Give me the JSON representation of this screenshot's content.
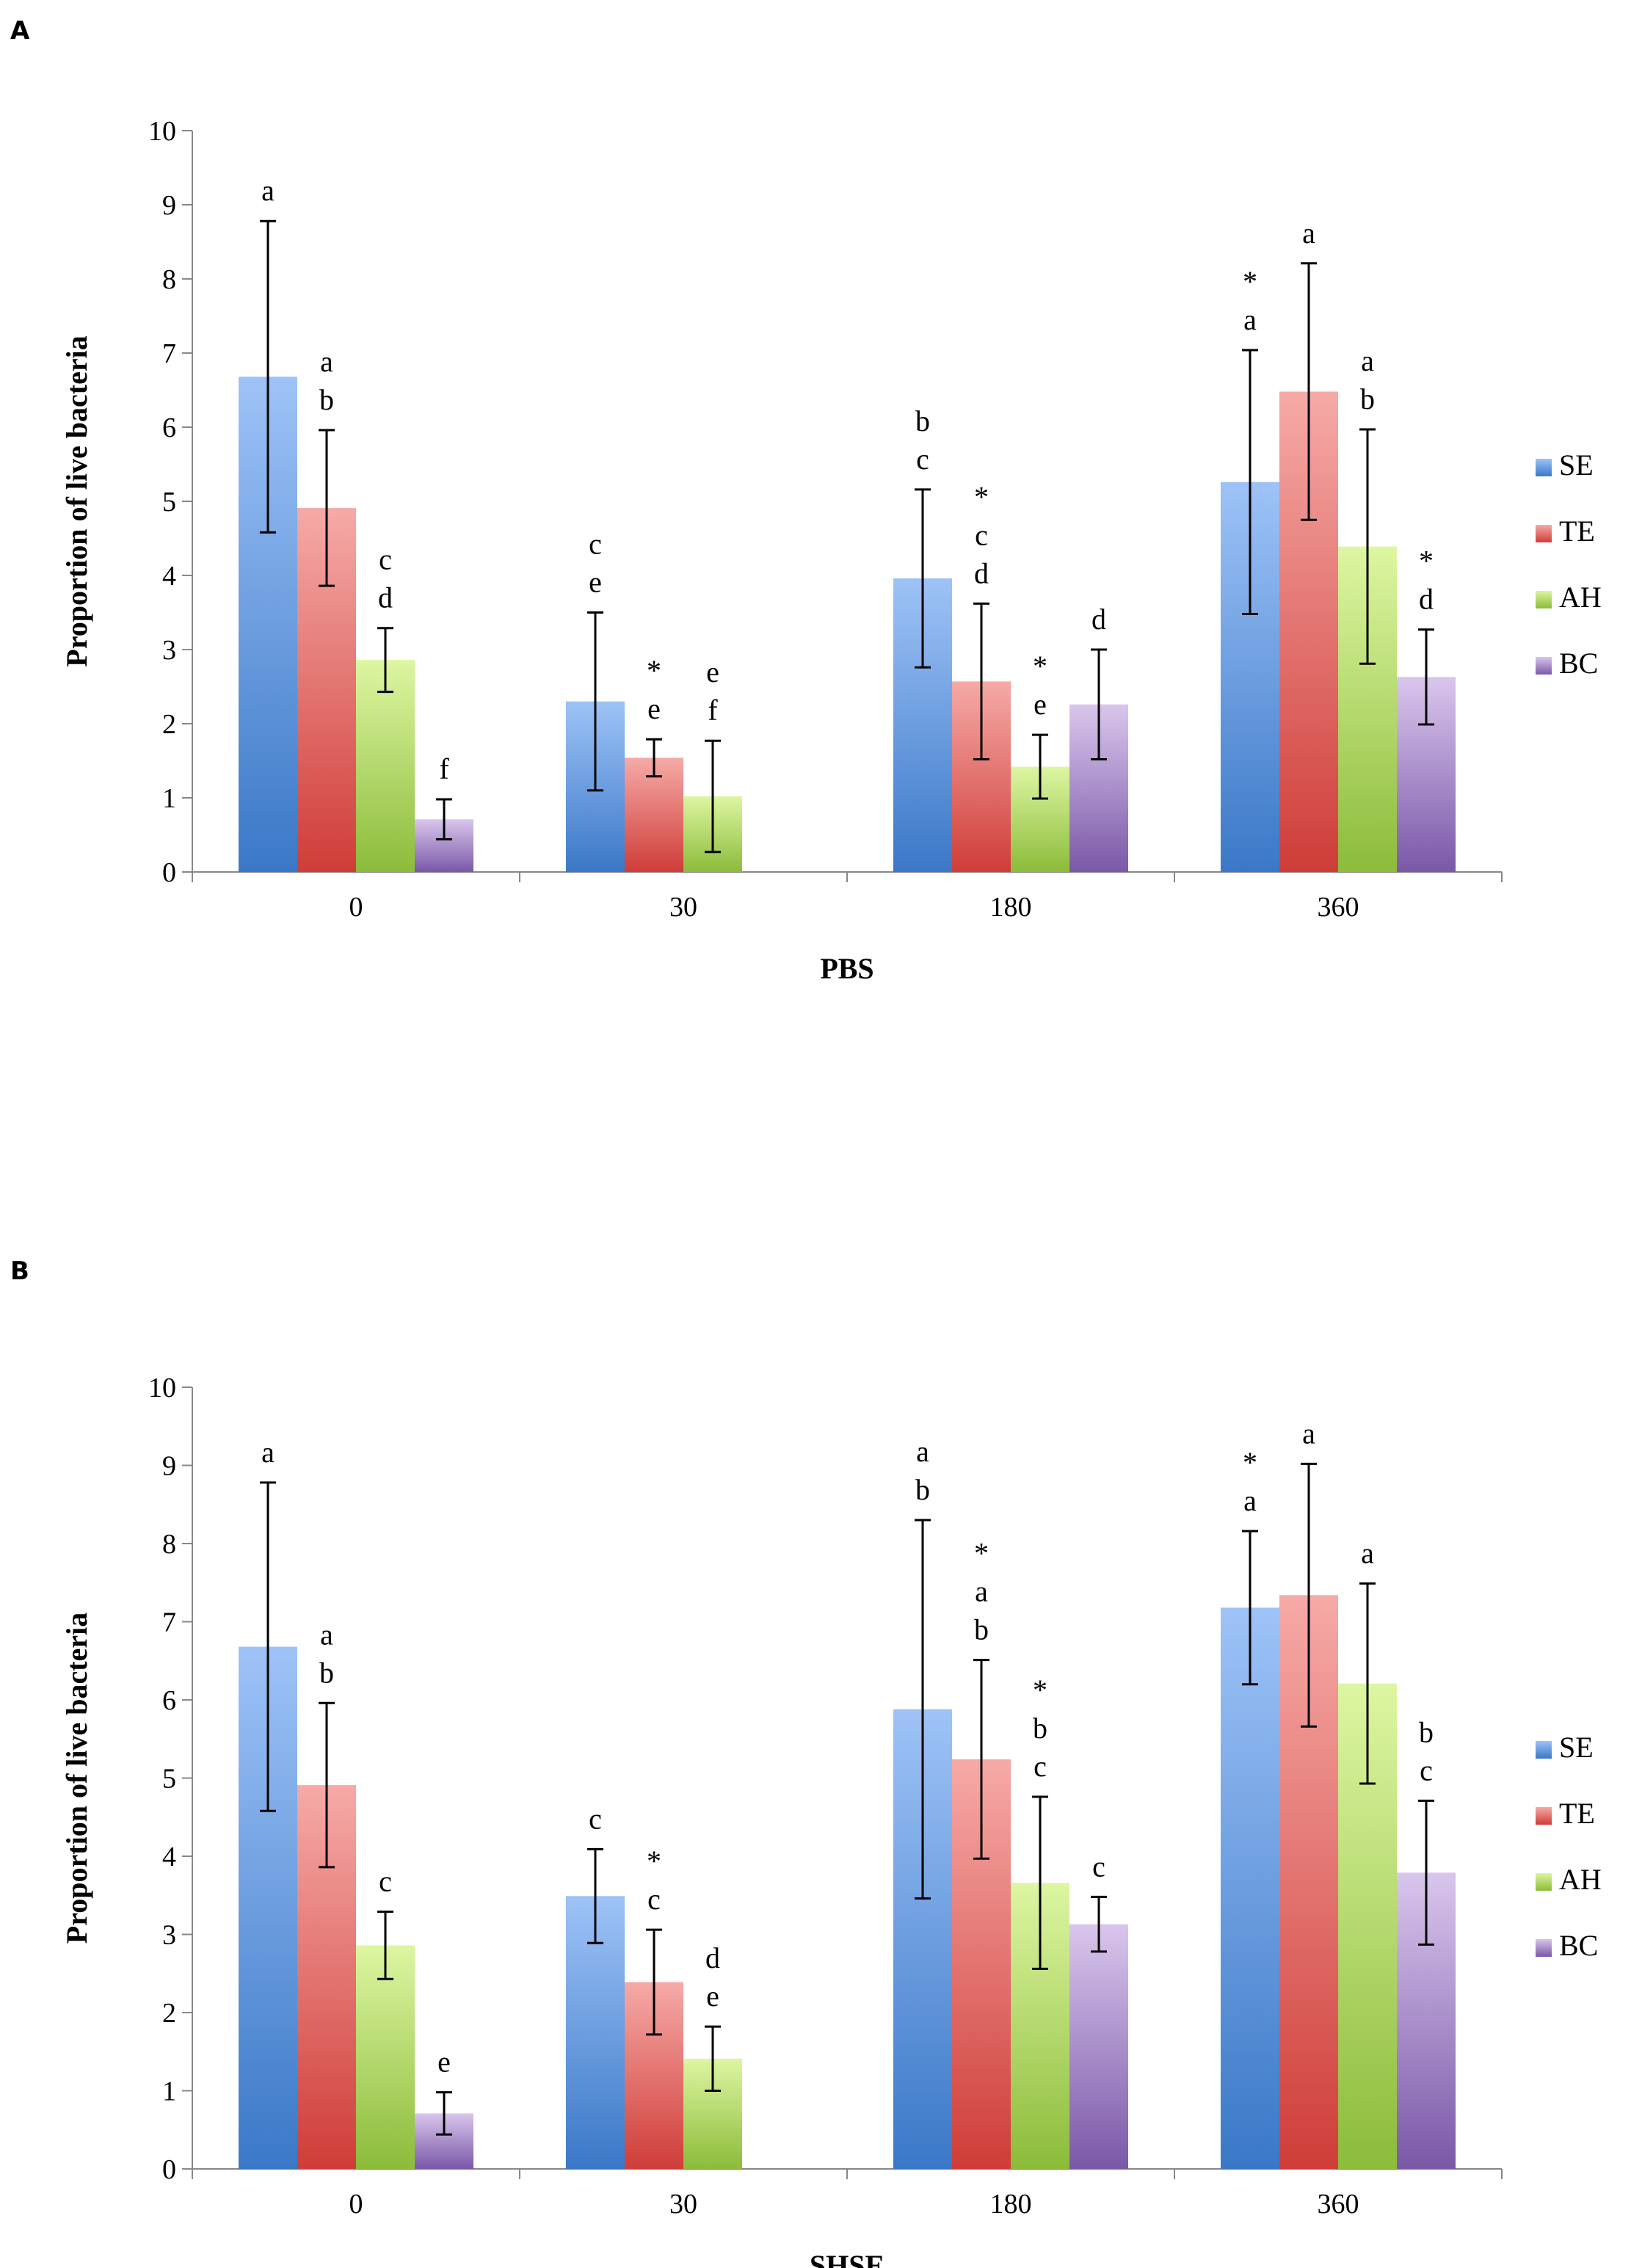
{
  "series_colors": {
    "SE": {
      "light": "#9ec3f7",
      "dark": "#3a78c7"
    },
    "TE": {
      "light": "#f6aaa7",
      "dark": "#cf3d38"
    },
    "AH": {
      "light": "#ddf6a2",
      "dark": "#8cbc3a"
    },
    "BC": {
      "light": "#d9c6ec",
      "dark": "#7a58a8"
    }
  },
  "chart_data": [
    {
      "panel": "A",
      "type": "bar",
      "title": "",
      "xlabel": "PBS",
      "ylabel": "Proportion of live bacteria",
      "ylim": [
        0,
        10
      ],
      "yticks": [
        "0",
        "1",
        "2",
        "3",
        "4",
        "5",
        "6",
        "7",
        "8",
        "9",
        "10"
      ],
      "categories": [
        "0",
        "30",
        "180",
        "360"
      ],
      "legend": [
        "SE",
        "TE",
        "AH",
        "BC"
      ],
      "legend_position": "right",
      "series": [
        {
          "name": "SE",
          "values": [
            6.68,
            2.3,
            3.96,
            5.26
          ],
          "err": [
            2.1,
            1.2,
            1.2,
            1.78
          ],
          "labels": [
            "a",
            "c\ne",
            "b\nc",
            "*\na"
          ]
        },
        {
          "name": "TE",
          "values": [
            4.91,
            1.54,
            2.57,
            6.48
          ],
          "err": [
            1.05,
            0.25,
            1.05,
            1.73
          ],
          "labels": [
            "a\nb",
            "*\ne",
            "*\nc\nd",
            "a"
          ]
        },
        {
          "name": "AH",
          "values": [
            2.86,
            1.02,
            1.42,
            4.39
          ],
          "err": [
            0.43,
            0.75,
            0.43,
            1.58
          ],
          "labels": [
            "c\nd",
            "e\nf",
            "*\ne",
            "a\nb"
          ]
        },
        {
          "name": "BC",
          "values": [
            0.71,
            null,
            2.26,
            2.63
          ],
          "err": [
            0.27,
            null,
            0.74,
            0.64
          ],
          "labels": [
            "f",
            "",
            "d",
            "*\nd"
          ]
        }
      ]
    },
    {
      "panel": "B",
      "type": "bar",
      "title": "",
      "xlabel": "SHSE",
      "ylabel": "Proportion of live bacteria",
      "ylim": [
        0,
        10
      ],
      "yticks": [
        "0",
        "1",
        "2",
        "3",
        "4",
        "5",
        "6",
        "7",
        "8",
        "9",
        "10"
      ],
      "categories": [
        "0",
        "30",
        "180",
        "360"
      ],
      "legend": [
        "SE",
        "TE",
        "AH",
        "BC"
      ],
      "legend_position": "right",
      "series": [
        {
          "name": "SE",
          "values": [
            6.68,
            3.49,
            5.88,
            7.18
          ],
          "err": [
            2.1,
            0.6,
            2.42,
            0.98
          ],
          "labels": [
            "a",
            "c",
            "a\nb",
            "*\na"
          ]
        },
        {
          "name": "TE",
          "values": [
            4.91,
            2.39,
            5.24,
            7.34
          ],
          "err": [
            1.05,
            0.67,
            1.27,
            1.68
          ],
          "labels": [
            "a\nb",
            "*\nc",
            "*\na\nb",
            "a"
          ]
        },
        {
          "name": "AH",
          "values": [
            2.86,
            1.41,
            3.66,
            6.21
          ],
          "err": [
            0.43,
            0.41,
            1.1,
            1.28
          ],
          "labels": [
            "c",
            "d\ne",
            "*\nb\nc",
            "a"
          ]
        },
        {
          "name": "BC",
          "values": [
            0.71,
            null,
            3.13,
            3.79
          ],
          "err": [
            0.27,
            null,
            0.35,
            0.92
          ],
          "labels": [
            "e",
            "",
            "c",
            "b\nc"
          ]
        }
      ]
    }
  ]
}
